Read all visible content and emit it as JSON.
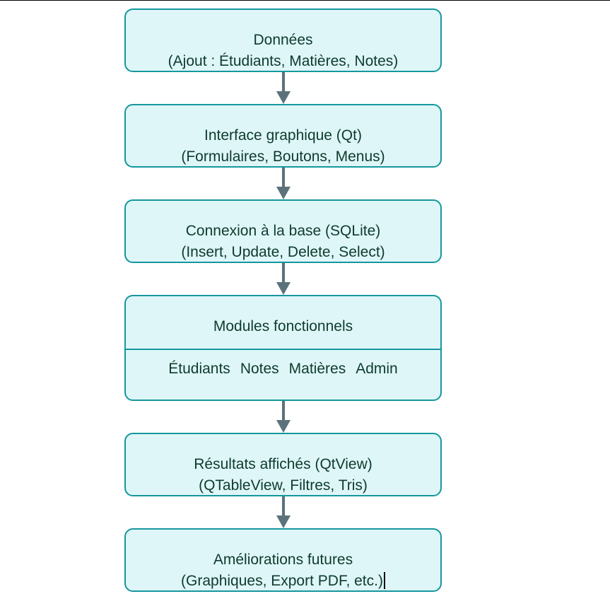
{
  "boxes": {
    "data": {
      "line1": "Données",
      "line2": "(Ajout : Étudiants, Matières, Notes)"
    },
    "gui": {
      "line1": "Interface graphique (Qt)",
      "line2": "(Formulaires, Boutons, Menus)"
    },
    "db": {
      "line1": "Connexion à la base (SQLite)",
      "line2": "(Insert, Update, Delete, Select)"
    },
    "modules": {
      "title": "Modules fonctionnels",
      "items": [
        "Étudiants",
        "Notes",
        "Matières",
        "Admin"
      ]
    },
    "results": {
      "line1": "Résultats affichés (QtView)",
      "line2": "(QTableView, Filtres, Tris)"
    },
    "future": {
      "line1": "Améliorations futures",
      "line2": "(Graphiques, Export PDF, etc.)"
    }
  },
  "colors": {
    "box_fill": "#dff6f8",
    "box_border": "#14979e",
    "arrow": "#5c727b",
    "text": "#0d3b2e"
  }
}
